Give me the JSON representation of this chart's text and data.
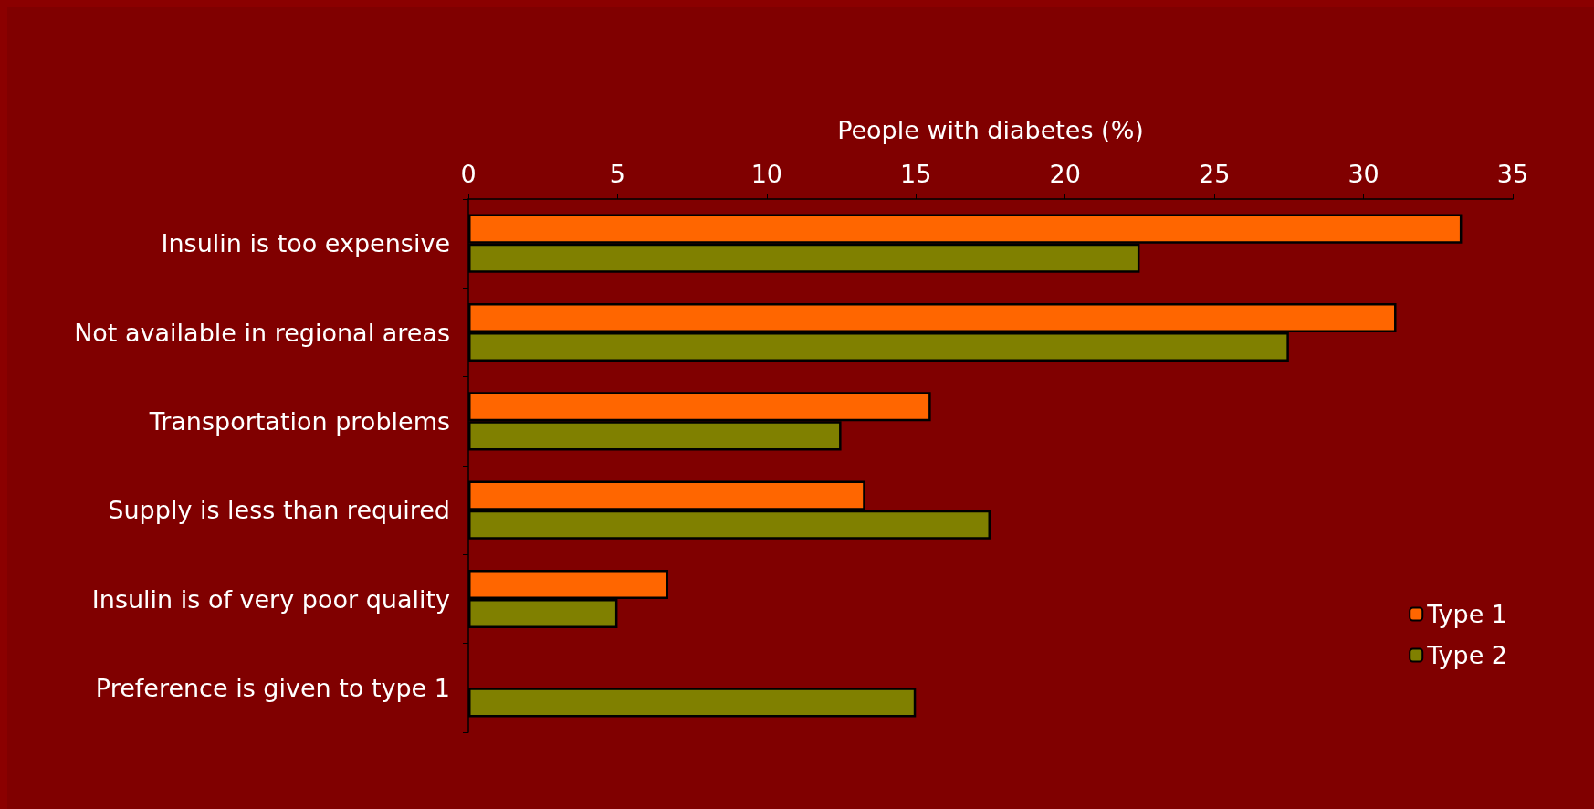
{
  "chart_data": {
    "type": "bar",
    "orientation": "horizontal",
    "xlabel": "People with diabetes (%)",
    "categories": [
      "Insulin is too expensive",
      "Not available in regional areas",
      "Transportation problems",
      "Supply is less than required",
      "Insulin is of very poor quality",
      "Preference is given to type 1"
    ],
    "series": [
      {
        "name": "Type 1",
        "color": "#ff6600",
        "values": [
          33.3,
          31.1,
          15.5,
          13.3,
          6.7,
          null
        ]
      },
      {
        "name": "Type 2",
        "color": "#808000",
        "values": [
          22.5,
          27.5,
          12.5,
          17.5,
          5.0,
          15.0
        ]
      }
    ],
    "xlim": [
      0,
      35
    ],
    "xticks": [
      0,
      5,
      10,
      15,
      20,
      25,
      30,
      35
    ],
    "grid": false,
    "legend": "bottom right"
  }
}
